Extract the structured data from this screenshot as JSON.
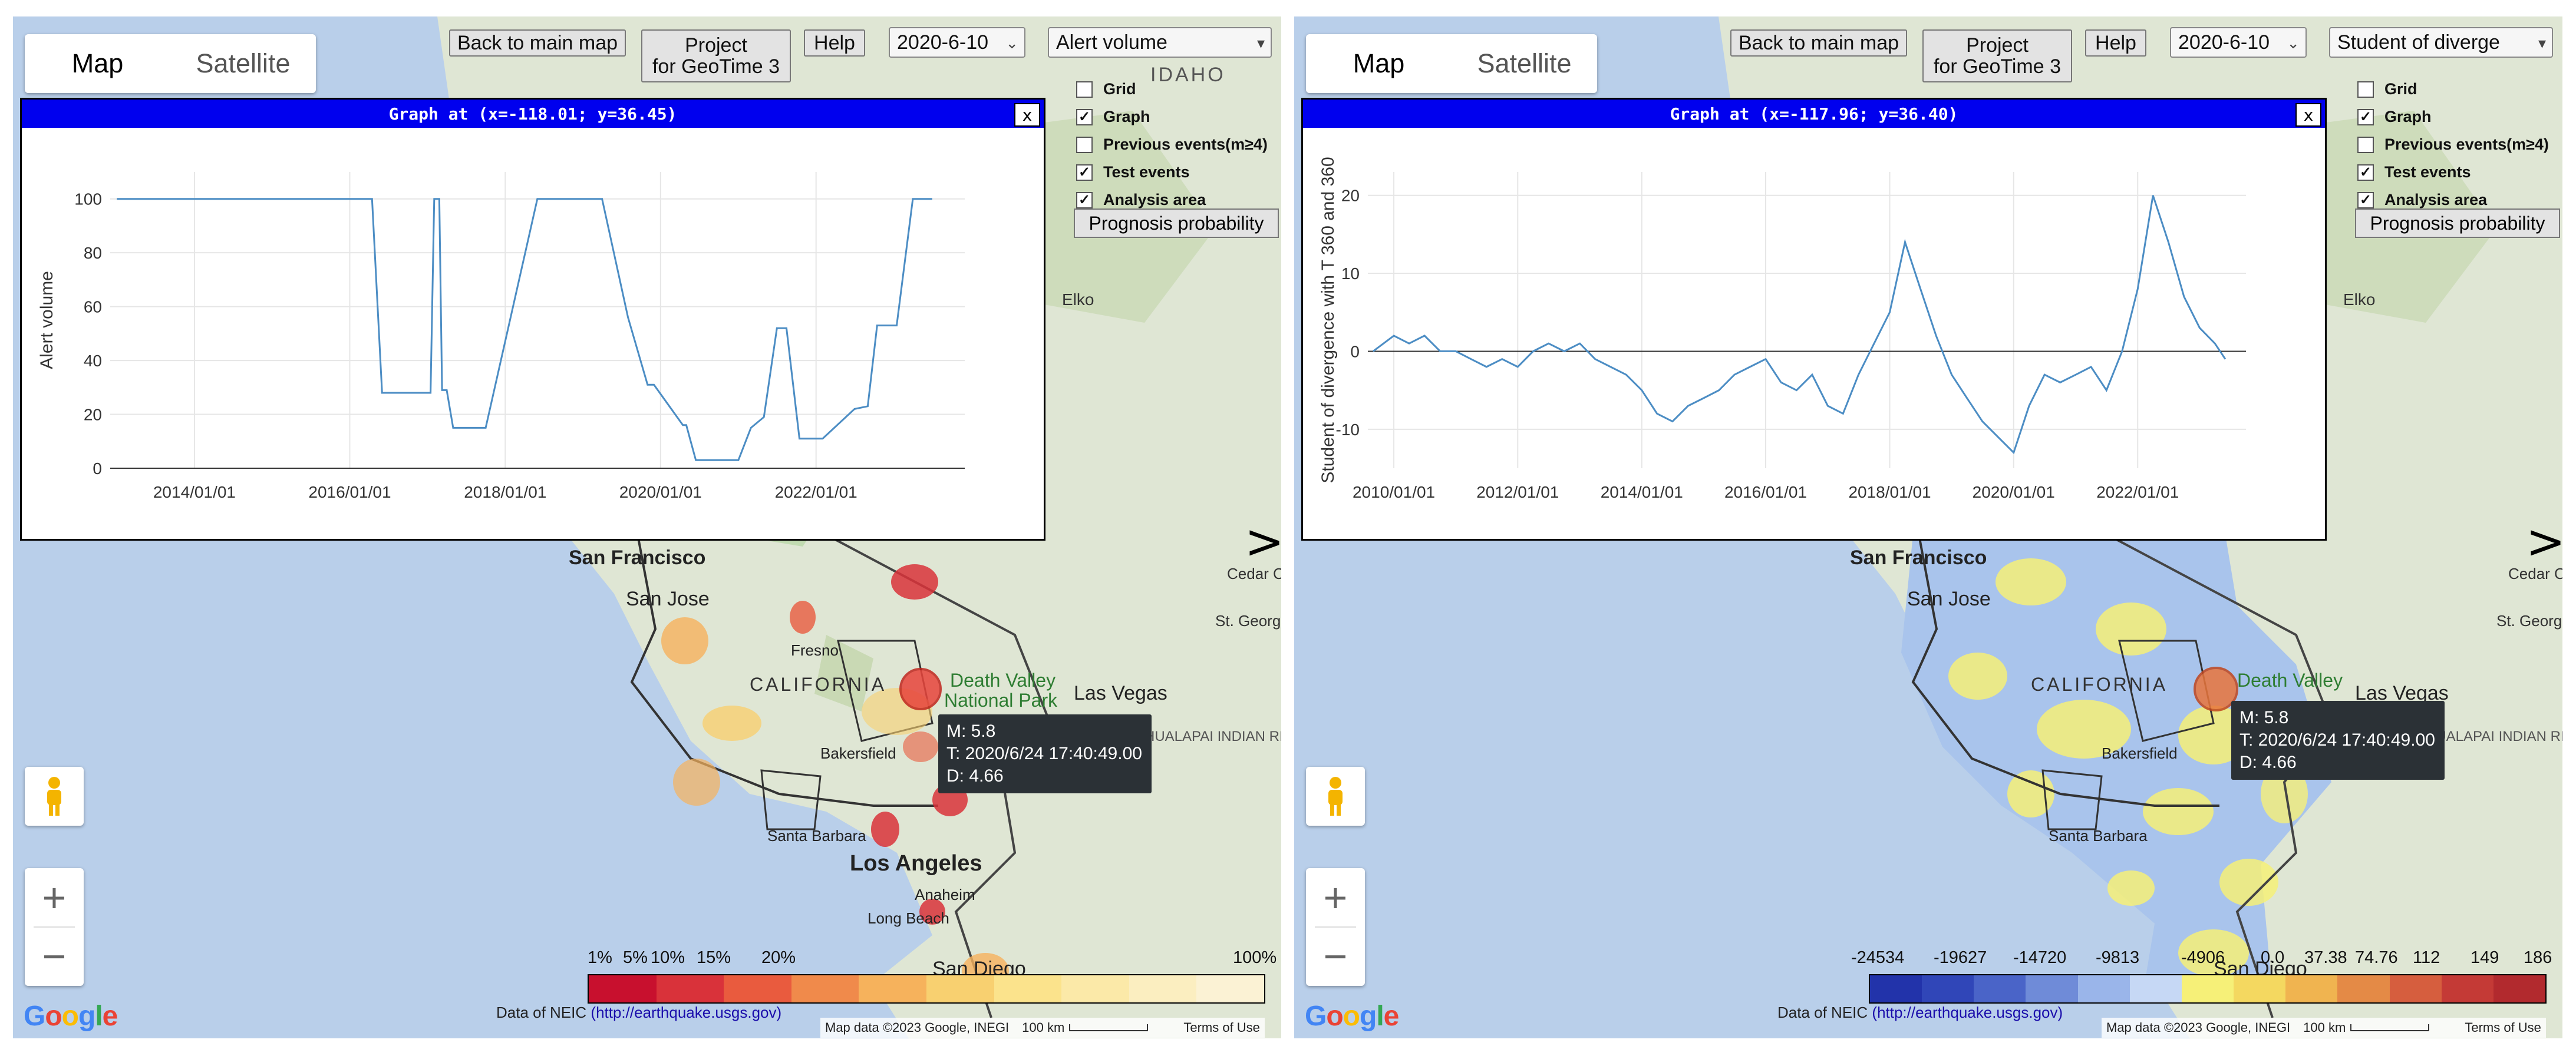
{
  "panels": [
    {
      "map_type": {
        "map": "Map",
        "satellite": "Satellite"
      },
      "buttons": {
        "back": "Back to main map",
        "project_line1": "Project",
        "project_line2": "for GeoTime 3",
        "help": "Help",
        "prognosis": "Prognosis probability"
      },
      "date_select": "2020-6-10",
      "metric_select": "Alert volume",
      "checkboxes": [
        {
          "label": "Grid",
          "checked": false
        },
        {
          "label": "Graph",
          "checked": true
        },
        {
          "label": "Previous events(m≥4)",
          "checked": false
        },
        {
          "label": "Test events",
          "checked": true
        },
        {
          "label": "Analysis area",
          "checked": true
        }
      ],
      "graph": {
        "title": "Graph at (x=-118.01; y=36.45)",
        "close": "x"
      },
      "tooltip": {
        "m": "M: 5.8",
        "t": "T: 2020/6/24 17:40:49.00",
        "d": "D: 4.66"
      },
      "map_labels": [
        "San Francisco",
        "San Jose",
        "Fresno",
        "CALIFORNIA",
        "Death Valley",
        "National Park",
        "Las Vegas",
        "Bakersfield",
        "Santa Barbara",
        "Los Angeles",
        "Anaheim",
        "Long Beach",
        "San Diego",
        "IDAHO",
        "Elko",
        "Cedar City",
        "St. George",
        "HUALAPAI INDIAN RESERVATION"
      ],
      "legend": {
        "labels": [
          "1%",
          "5%",
          "10%",
          "15%",
          "20%",
          "100%"
        ],
        "colors": [
          "#c8102e",
          "#d9323a",
          "#e95b3e",
          "#f08a4b",
          "#f6b25c",
          "#f8d070",
          "#fbe38c",
          "#fbe9a8",
          "#fbeec0",
          "#fbf2d4"
        ]
      },
      "neic": {
        "prefix": "Data of NEIC",
        "link": "(http://earthquake.usgs.gov)"
      },
      "attribution": {
        "data": "Map data ©2023 Google, INEGI",
        "scale": "100 km",
        "terms": "Terms of Use"
      },
      "next": ">"
    },
    {
      "map_type": {
        "map": "Map",
        "satellite": "Satellite"
      },
      "buttons": {
        "back": "Back to main map",
        "project_line1": "Project",
        "project_line2": "for GeoTime 3",
        "help": "Help",
        "prognosis": "Prognosis probability"
      },
      "date_select": "2020-6-10",
      "metric_select": "Student of diverge",
      "checkboxes": [
        {
          "label": "Grid",
          "checked": false
        },
        {
          "label": "Graph",
          "checked": true
        },
        {
          "label": "Previous events(m≥4)",
          "checked": false
        },
        {
          "label": "Test events",
          "checked": true
        },
        {
          "label": "Analysis area",
          "checked": true
        }
      ],
      "graph": {
        "title": "Graph at (x=-117.96; y=36.40)",
        "close": "x"
      },
      "tooltip": {
        "m": "M: 5.8",
        "t": "T: 2020/6/24 17:40:49.00",
        "d": "D: 4.66"
      },
      "map_labels": [
        "San Francisco",
        "San Jose",
        "CALIFORNIA",
        "Death Valley",
        "Las Vegas",
        "Bakersfield",
        "Santa Barbara",
        "San Diego",
        "Elko",
        "Cedar City",
        "St. George",
        "HUALAPAI INDIAN RESERVATION"
      ],
      "legend": {
        "labels": [
          "-24534",
          "-19627",
          "-14720",
          "-9813",
          "-4906",
          "0.0",
          "37.38",
          "74.76",
          "112",
          "149",
          "186"
        ],
        "colors": [
          "#2233aa",
          "#3046b8",
          "#4a64c8",
          "#6f8bd8",
          "#9ab5ea",
          "#c6d8f5",
          "#f6f078",
          "#f4d860",
          "#f0b450",
          "#e48a46",
          "#d65e3e",
          "#c43a36",
          "#b22a2e"
        ]
      },
      "neic": {
        "prefix": "Data of NEIC",
        "link": "(http://earthquake.usgs.gov)"
      },
      "attribution": {
        "data": "Map data ©2023 Google, INEGI",
        "scale": "100 km",
        "terms": "Terms of Use"
      },
      "next": ">"
    }
  ],
  "chart_data": [
    {
      "type": "line",
      "title": "",
      "ylabel": "Alert volume",
      "xlabel": "",
      "x_tick_labels": [
        "2014/01/01",
        "2016/01/01",
        "2018/01/01",
        "2020/01/01",
        "2022/01/01"
      ],
      "y_ticks": [
        0,
        20,
        40,
        60,
        80,
        100
      ],
      "xlim": [
        "2012/12/01",
        "2023/12/01"
      ],
      "ylim": [
        0,
        110
      ],
      "grid": true,
      "series": [
        {
          "x": [
            "2013/01/01",
            "2016/04/15",
            "2016/06/01",
            "2017/01/15",
            "2017/02/01",
            "2017/02/25",
            "2017/03/10",
            "2017/04/01",
            "2017/05/01",
            "2017/08/01",
            "2017/10/01",
            "2018/06/01",
            "2019/04/01",
            "2019/08/01",
            "2019/11/01",
            "2019/12/01",
            "2020/04/15",
            "2020/05/01",
            "2020/06/15",
            "2020/07/01",
            "2020/09/01",
            "2021/01/01",
            "2021/03/01",
            "2021/05/01",
            "2021/07/01",
            "2021/08/15",
            "2021/10/15",
            "2021/12/15",
            "2022/02/01",
            "2022/07/01",
            "2022/09/01",
            "2022/10/15",
            "2022/12/15",
            "2023/01/15",
            "2023/04/01",
            "2023/05/01",
            "2023/07/01"
          ],
          "y": [
            100,
            100,
            28,
            28,
            100,
            100,
            29,
            29,
            15,
            15,
            15,
            100,
            100,
            56,
            31,
            31,
            16,
            16,
            3,
            3,
            3,
            3,
            15,
            19,
            52,
            52,
            11,
            11,
            11,
            22,
            23,
            53,
            53,
            53,
            100,
            100,
            100
          ]
        }
      ]
    },
    {
      "type": "line",
      "title": "",
      "ylabel": "Student of divergence with T 360 and 360",
      "xlabel": "",
      "x_tick_labels": [
        "2010/01/01",
        "2012/01/01",
        "2014/01/01",
        "2016/01/01",
        "2018/01/01",
        "2020/01/01",
        "2022/01/01"
      ],
      "y_ticks": [
        -10,
        0,
        10,
        20
      ],
      "xlim": [
        "2009/08/01",
        "2023/10/01"
      ],
      "ylim": [
        -15,
        23
      ],
      "grid": true,
      "reference_line_y": 0,
      "series": [
        {
          "x": [
            "2009/09/01",
            "2010/01/01",
            "2010/04/01",
            "2010/07/01",
            "2010/10/01",
            "2011/01/01",
            "2011/04/01",
            "2011/07/01",
            "2011/10/01",
            "2012/01/01",
            "2012/04/01",
            "2012/07/01",
            "2012/10/01",
            "2013/01/01",
            "2013/04/01",
            "2013/07/01",
            "2013/10/01",
            "2014/01/01",
            "2014/04/01",
            "2014/07/01",
            "2014/10/01",
            "2015/01/01",
            "2015/04/01",
            "2015/07/01",
            "2015/10/01",
            "2016/01/01",
            "2016/04/01",
            "2016/07/01",
            "2016/10/01",
            "2017/01/01",
            "2017/04/01",
            "2017/07/01",
            "2017/10/01",
            "2018/01/01",
            "2018/04/01",
            "2018/07/01",
            "2018/10/01",
            "2019/01/01",
            "2019/04/01",
            "2019/07/01",
            "2019/10/01",
            "2020/01/01",
            "2020/04/01",
            "2020/07/01",
            "2020/10/01",
            "2021/01/01",
            "2021/04/01",
            "2021/07/01",
            "2021/10/01",
            "2022/01/01",
            "2022/04/01",
            "2022/07/01",
            "2022/10/01",
            "2023/01/01",
            "2023/04/01",
            "2023/06/01"
          ],
          "y": [
            0,
            2,
            1,
            2,
            0,
            0,
            -1,
            -2,
            -1,
            -2,
            0,
            1,
            0,
            1,
            -1,
            -2,
            -3,
            -5,
            -8,
            -9,
            -7,
            -6,
            -5,
            -3,
            -2,
            -1,
            -4,
            -5,
            -3,
            -7,
            -8,
            -3,
            1,
            5,
            14,
            8,
            2,
            -3,
            -6,
            -9,
            -11,
            -13,
            -7,
            -3,
            -4,
            -3,
            -2,
            -5,
            0,
            8,
            20,
            14,
            7,
            3,
            1,
            -1
          ]
        }
      ]
    }
  ]
}
